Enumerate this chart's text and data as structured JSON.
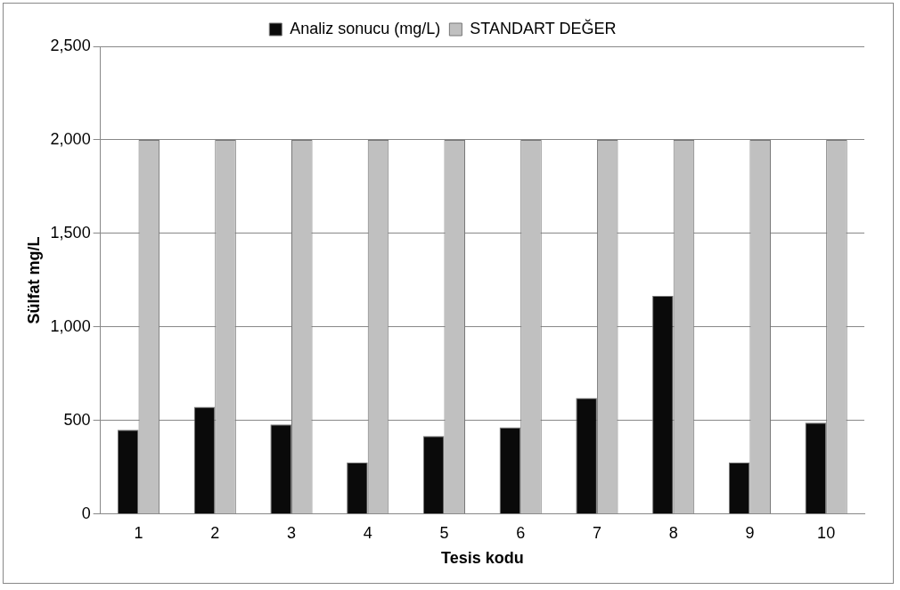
{
  "chart_data": {
    "type": "bar",
    "xlabel": "Tesis kodu",
    "ylabel": "Sülfat mg/L",
    "categories": [
      "1",
      "2",
      "3",
      "4",
      "5",
      "6",
      "7",
      "8",
      "9",
      "10"
    ],
    "series": [
      {
        "name": "Analiz sonucu (mg/L)",
        "color": "#0a0a0a",
        "values": [
          450,
          573,
          479,
          275,
          417,
          464,
          621,
          1166,
          275,
          488
        ]
      },
      {
        "name": "STANDART DEĞER",
        "color": "#c0c0c0",
        "values": [
          2000,
          2000,
          2000,
          2000,
          2000,
          2000,
          2000,
          2000,
          2000,
          2000
        ]
      }
    ],
    "ylim": [
      0,
      2500
    ],
    "yticks": [
      {
        "value": 0,
        "label": "0"
      },
      {
        "value": 500,
        "label": "500"
      },
      {
        "value": 1000,
        "label": "1,000"
      },
      {
        "value": 1500,
        "label": "1,500"
      },
      {
        "value": 2000,
        "label": "2,000"
      },
      {
        "value": 2500,
        "label": "2,500"
      }
    ],
    "grid": "y",
    "legend": "top"
  }
}
